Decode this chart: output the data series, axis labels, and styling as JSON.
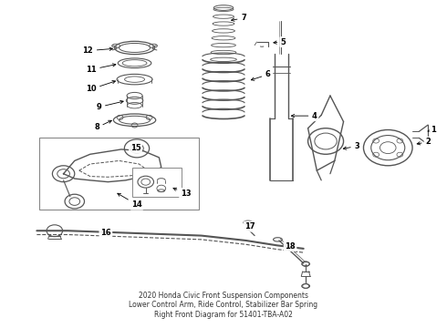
{
  "bg_color": "#ffffff",
  "line_color": "#555555",
  "label_color": "#000000",
  "fig_width": 4.9,
  "fig_height": 3.6,
  "dpi": 100,
  "title": "2020 Honda Civic Front Suspension Components\nLower Control Arm, Ride Control, Stabilizer Bar Spring\nRight Front Diagram for 51401-TBA-A02",
  "title_fontsize": 5.5,
  "title_color": "#333333"
}
